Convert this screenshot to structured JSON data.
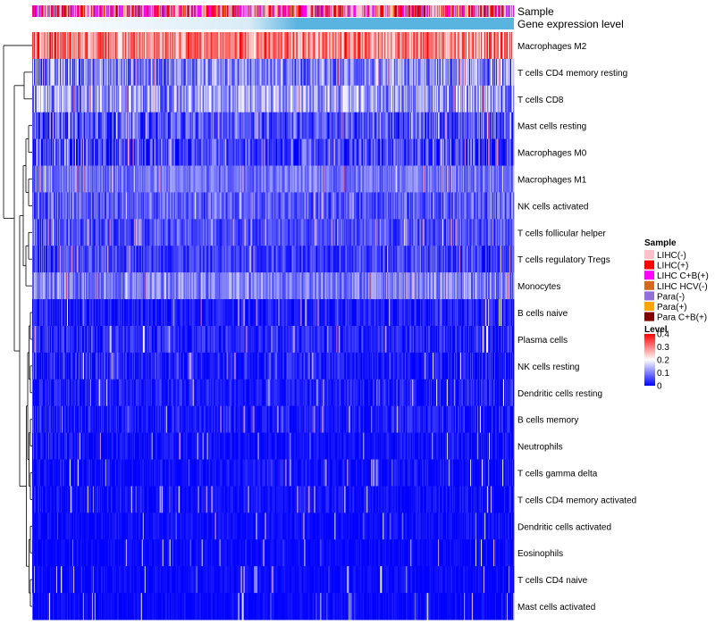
{
  "chart_data": {
    "type": "heatmap",
    "title": "",
    "annotation_rows": [
      {
        "name": "Sample",
        "label": "Sample"
      },
      {
        "name": "Gene expression level",
        "label": "Gene expression level"
      }
    ],
    "rows": [
      {
        "name": "Macrophages M2",
        "mean": 0.3,
        "spread": 0.1
      },
      {
        "name": "T cells CD4 memory resting",
        "mean": 0.1,
        "spread": 0.09
      },
      {
        "name": "T cells CD8",
        "mean": 0.12,
        "spread": 0.09
      },
      {
        "name": "Mast cells resting",
        "mean": 0.06,
        "spread": 0.07
      },
      {
        "name": "Macrophages M0",
        "mean": 0.05,
        "spread": 0.08
      },
      {
        "name": "Macrophages M1",
        "mean": 0.09,
        "spread": 0.05
      },
      {
        "name": "NK cells activated",
        "mean": 0.07,
        "spread": 0.06
      },
      {
        "name": "T cells follicular helper",
        "mean": 0.06,
        "spread": 0.05
      },
      {
        "name": "T cells regulatory  Tregs",
        "mean": 0.05,
        "spread": 0.05
      },
      {
        "name": "Monocytes",
        "mean": 0.1,
        "spread": 0.06
      },
      {
        "name": "B cells naive",
        "mean": 0.02,
        "spread": 0.04
      },
      {
        "name": "Plasma cells",
        "mean": 0.03,
        "spread": 0.04
      },
      {
        "name": "NK cells resting",
        "mean": 0.02,
        "spread": 0.05
      },
      {
        "name": "Dendritic cells resting",
        "mean": 0.02,
        "spread": 0.04
      },
      {
        "name": "B cells memory",
        "mean": 0.02,
        "spread": 0.04
      },
      {
        "name": "Neutrophils",
        "mean": 0.01,
        "spread": 0.03
      },
      {
        "name": "T cells gamma delta",
        "mean": 0.01,
        "spread": 0.03
      },
      {
        "name": "T cells CD4 memory activated",
        "mean": 0.01,
        "spread": 0.03
      },
      {
        "name": "Dendritic cells activated",
        "mean": 0.01,
        "spread": 0.02
      },
      {
        "name": "Eosinophils",
        "mean": 0.005,
        "spread": 0.02
      },
      {
        "name": "T cells CD4 naive",
        "mean": 0.005,
        "spread": 0.02
      },
      {
        "name": "Mast cells activated",
        "mean": 0.005,
        "spread": 0.02
      }
    ],
    "n_columns": 540,
    "sample_legend": {
      "title": "Sample",
      "categories": [
        {
          "label": "LIHC(-)",
          "color": "#ffc0cb"
        },
        {
          "label": "LIHC(+)",
          "color": "#ff0000"
        },
        {
          "label": "LIHC C+B(+)",
          "color": "#ff00ff"
        },
        {
          "label": "LIHC HCV(-)",
          "color": "#d2691e"
        },
        {
          "label": "Para(-)",
          "color": "#9370db"
        },
        {
          "label": "Para(+)",
          "color": "#ffa500"
        },
        {
          "label": "Para C+B(+)",
          "color": "#800000"
        }
      ]
    },
    "level_legend": {
      "title": "Level",
      "range": [
        0,
        0.4
      ],
      "ticks": [
        "0.4",
        "0.3",
        "0.2",
        "0.1",
        "0"
      ],
      "colors": [
        "#0000ff",
        "#ffffff",
        "#ff0000"
      ]
    },
    "expression_bar": {
      "low_color": "#ffffff",
      "high_color": "#5ab4e0"
    }
  }
}
